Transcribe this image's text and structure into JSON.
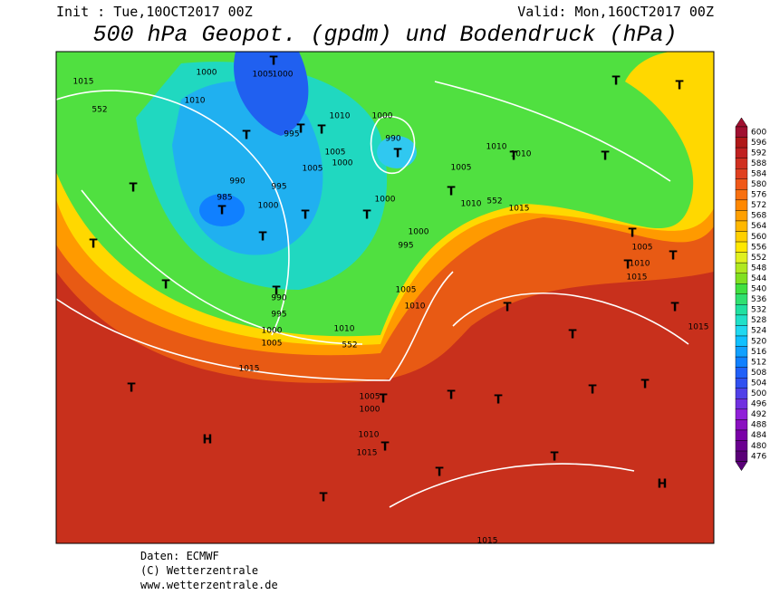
{
  "header": {
    "init": "Init : Tue,10OCT2017 00Z",
    "valid": "Valid: Mon,16OCT2017 00Z",
    "title": "500 hPa Geopot. (gpdm) und Bodendruck (hPa)"
  },
  "map": {
    "labels": [
      "1015",
      "1000",
      "1005",
      "1000",
      "1010",
      "995",
      "1005",
      "990",
      "985",
      "995",
      "1000",
      "1000",
      "1005",
      "1010",
      "1000",
      "990",
      "1000",
      "1010",
      "1005",
      "1010",
      "1010",
      "1015",
      "1000",
      "995",
      "1005",
      "1010",
      "1005",
      "1010",
      "1015",
      "1015",
      "1010",
      "1005",
      "1000",
      "995",
      "990",
      "1015",
      "1005",
      "1000",
      "1010",
      "1015",
      "1015",
      "552",
      "552",
      "552",
      "T",
      "T",
      "T",
      "T",
      "T",
      "T",
      "T",
      "T",
      "T",
      "T",
      "T",
      "T",
      "T",
      "T",
      "T",
      "T",
      "T",
      "T",
      "T",
      "T",
      "T",
      "T",
      "T",
      "T",
      "T",
      "T",
      "T",
      "T",
      "T",
      "T",
      "T",
      "T",
      "T",
      "T",
      "H",
      "H"
    ]
  },
  "legend": {
    "levels": [
      600,
      596,
      592,
      588,
      584,
      580,
      576,
      572,
      568,
      564,
      560,
      556,
      552,
      548,
      544,
      540,
      536,
      532,
      528,
      524,
      520,
      516,
      512,
      508,
      504,
      500,
      496,
      492,
      488,
      484,
      480,
      476
    ],
    "colors": [
      "#a01030",
      "#b01818",
      "#c02020",
      "#d03020",
      "#e04020",
      "#f05818",
      "#f87010",
      "#ff8800",
      "#ffa000",
      "#ffb800",
      "#ffd000",
      "#ffe800",
      "#e0f020",
      "#b0e820",
      "#80e020",
      "#40e040",
      "#30e070",
      "#20e0a0",
      "#20e0c8",
      "#20d8f0",
      "#10c0ff",
      "#10a0ff",
      "#1080ff",
      "#2060f8",
      "#3050f0",
      "#5040e8",
      "#7030e0",
      "#9020d8",
      "#8a10c0",
      "#7a00a8",
      "#6a0090",
      "#5a0078"
    ]
  },
  "footer": {
    "source": "Daten: ECMWF",
    "copyright": "(C) Wetterzentrale",
    "url": "www.wetterzentrale.de"
  }
}
